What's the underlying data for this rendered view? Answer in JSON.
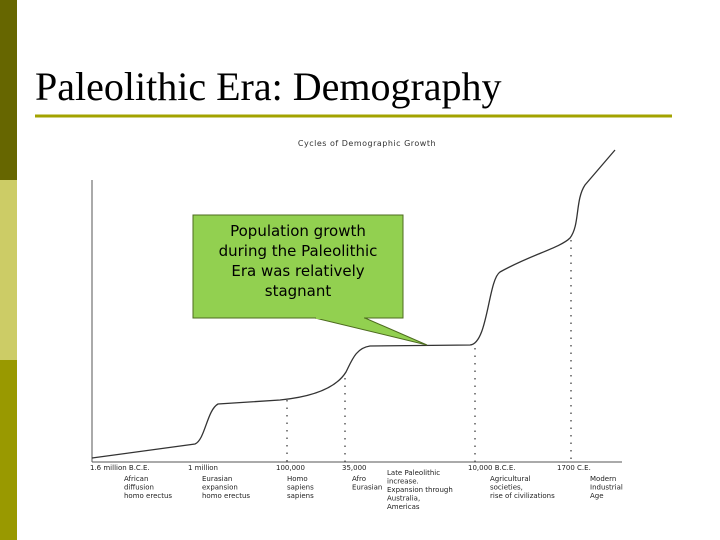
{
  "slide": {
    "title": "Paleolithic Era: Demography",
    "diagram": {
      "title": "Cycles of Demographic Growth",
      "callout": [
        "Population growth",
        "during the Paleolithic",
        "Era was relatively",
        "stagnant"
      ],
      "markers": [
        {
          "label": "1.6 million B.C.E.",
          "note": [
            "African",
            "diffusion",
            "homo erectus"
          ]
        },
        {
          "label": "1 million",
          "note": [
            "Eurasian",
            "expansion",
            "homo erectus"
          ]
        },
        {
          "label": "100,000",
          "note": [
            "Homo",
            "sapiens",
            "sapiens"
          ]
        },
        {
          "label": "35,000",
          "note": [
            "Afro",
            "Eurasian"
          ]
        },
        {
          "label": "10,000 B.C.E.",
          "note": [
            "Agricultural",
            "societies,",
            "rise of civilizations"
          ]
        },
        {
          "label": "1700 C.E.",
          "note": [
            "Modern",
            "Industrial",
            "Age"
          ]
        }
      ],
      "late_note": [
        "Late Paleolithic",
        "increase.",
        "Expansion through",
        "Australia,",
        "Americas"
      ]
    }
  }
}
